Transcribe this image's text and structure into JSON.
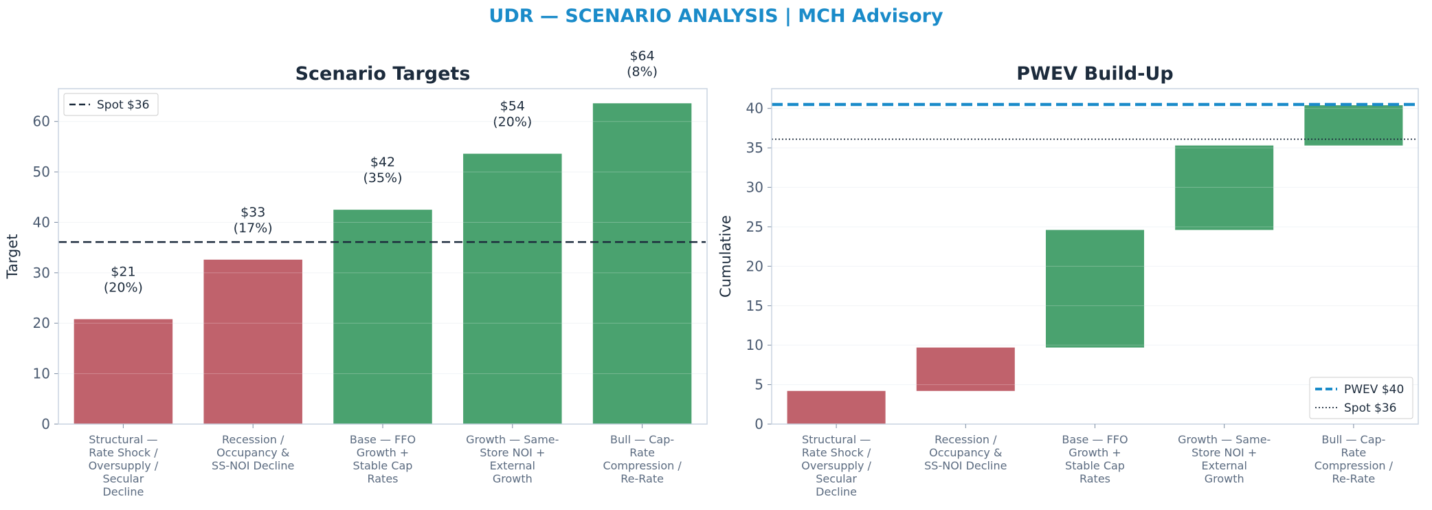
{
  "header": {
    "title": "UDR — SCENARIO ANALYSIS | MCH Advisory"
  },
  "colors": {
    "down": "#c0626c",
    "up": "#4aa26f",
    "spot": "#1c2b3c",
    "pwev": "#1a8bc9",
    "frame": "#c8d3e0",
    "grid": "#eef1f5"
  },
  "chart_data": [
    {
      "type": "bar",
      "title": "Scenario Targets",
      "xlabel": "",
      "ylabel": "Target",
      "ylim": [
        0,
        66.5
      ],
      "yticks": [
        0,
        10,
        20,
        30,
        40,
        50,
        60
      ],
      "grid": true,
      "legend_position": "top-left",
      "categories": [
        [
          "Structural —",
          "Rate Shock /",
          "Oversupply /",
          "Secular",
          "Decline"
        ],
        [
          "Recession /",
          "Occupancy &",
          "SS-NOI Decline"
        ],
        [
          "Base — FFO",
          "Growth +",
          "Stable Cap",
          "Rates"
        ],
        [
          "Growth — Same-",
          "Store NOI +",
          "External",
          "Growth"
        ],
        [
          "Bull — Cap-",
          "Rate",
          "Compression /",
          "Re-Rate"
        ]
      ],
      "values": [
        20.8,
        32.6,
        42.5,
        53.6,
        63.6
      ],
      "value_labels": [
        "$21",
        "$33",
        "$42",
        "$54",
        "$64"
      ],
      "probability_labels": [
        "(20%)",
        "(17%)",
        "(35%)",
        "(20%)",
        "(8%)"
      ],
      "bar_direction": [
        "down",
        "down",
        "up",
        "up",
        "up"
      ],
      "reference_lines": [
        {
          "name": "Spot $36",
          "value": 36.1,
          "style": "dashed"
        }
      ]
    },
    {
      "type": "bar",
      "subtype": "waterfall",
      "title": "PWEV Build-Up",
      "xlabel": "",
      "ylabel": "Cumulative",
      "ylim": [
        0,
        42.5
      ],
      "yticks": [
        0,
        5,
        10,
        15,
        20,
        25,
        30,
        35,
        40
      ],
      "grid": true,
      "legend_position": "bottom-right",
      "categories": [
        [
          "Structural —",
          "Rate Shock /",
          "Oversupply /",
          "Secular",
          "Decline"
        ],
        [
          "Recession /",
          "Occupancy &",
          "SS-NOI Decline"
        ],
        [
          "Base — FFO",
          "Growth +",
          "Stable Cap",
          "Rates"
        ],
        [
          "Growth — Same-",
          "Store NOI +",
          "External",
          "Growth"
        ],
        [
          "Bull — Cap-",
          "Rate",
          "Compression /",
          "Re-Rate"
        ]
      ],
      "bars": [
        {
          "start": 0.0,
          "end": 4.2
        },
        {
          "start": 4.2,
          "end": 9.7
        },
        {
          "start": 9.7,
          "end": 24.6
        },
        {
          "start": 24.6,
          "end": 35.3
        },
        {
          "start": 35.3,
          "end": 40.4
        }
      ],
      "bar_direction": [
        "down",
        "down",
        "up",
        "up",
        "up"
      ],
      "reference_lines": [
        {
          "name": "PWEV $40",
          "value": 40.5,
          "style": "dashed"
        },
        {
          "name": "Spot $36",
          "value": 36.1,
          "style": "dotted"
        }
      ]
    }
  ]
}
